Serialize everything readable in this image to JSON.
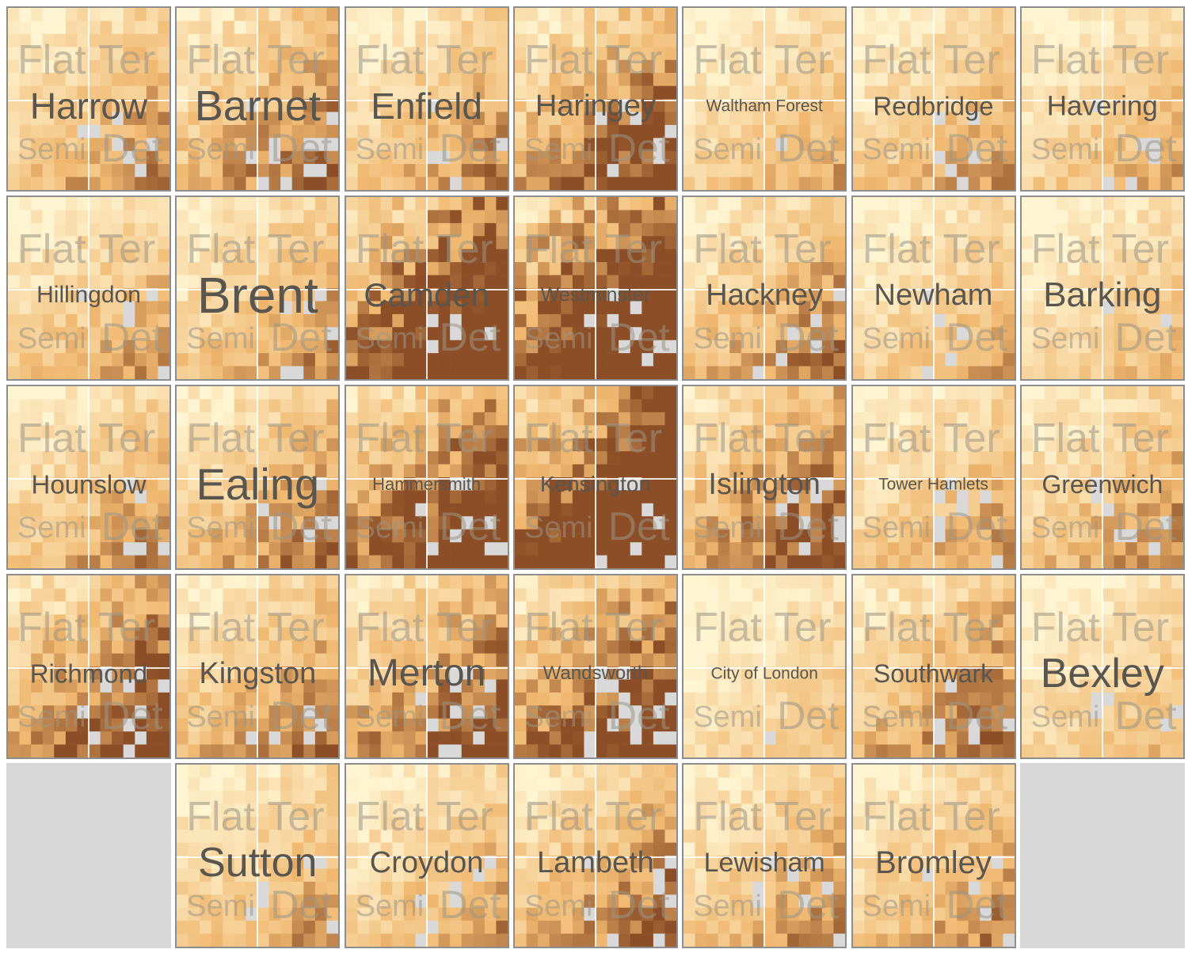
{
  "chart_data": {
    "type": "heatmap",
    "quadrant_labels": {
      "flat": "Flat",
      "terraced": "Ter",
      "semi": "Semi",
      "detached": "Det"
    },
    "boroughs": [
      {
        "name": "Harrow",
        "row": 0,
        "col": 0,
        "level": 0.35,
        "size": 46
      },
      {
        "name": "Barnet",
        "row": 0,
        "col": 1,
        "level": 0.45,
        "size": 54
      },
      {
        "name": "Enfield",
        "row": 0,
        "col": 2,
        "level": 0.35,
        "size": 46
      },
      {
        "name": "Haringey",
        "row": 0,
        "col": 3,
        "level": 0.55,
        "size": 38
      },
      {
        "name": "Waltham Forest",
        "row": 0,
        "col": 4,
        "level": 0.25,
        "size": 21
      },
      {
        "name": "Redbridge",
        "row": 0,
        "col": 5,
        "level": 0.3,
        "size": 33
      },
      {
        "name": "Havering",
        "row": 0,
        "col": 6,
        "level": 0.25,
        "size": 35
      },
      {
        "name": "Hillingdon",
        "row": 1,
        "col": 0,
        "level": 0.3,
        "size": 30
      },
      {
        "name": "Brent",
        "row": 1,
        "col": 1,
        "level": 0.35,
        "size": 64
      },
      {
        "name": "Camden",
        "row": 1,
        "col": 2,
        "level": 0.85,
        "size": 42
      },
      {
        "name": "Westminster",
        "row": 1,
        "col": 3,
        "level": 0.95,
        "size": 25
      },
      {
        "name": "Hackney",
        "row": 1,
        "col": 4,
        "level": 0.4,
        "size": 38
      },
      {
        "name": "Newham",
        "row": 1,
        "col": 5,
        "level": 0.25,
        "size": 38
      },
      {
        "name": "Barking",
        "row": 1,
        "col": 6,
        "level": 0.2,
        "size": 44
      },
      {
        "name": "Hounslow",
        "row": 2,
        "col": 0,
        "level": 0.35,
        "size": 33
      },
      {
        "name": "Ealing",
        "row": 2,
        "col": 1,
        "level": 0.4,
        "size": 56
      },
      {
        "name": "Hammersmith",
        "row": 2,
        "col": 2,
        "level": 0.7,
        "size": 22
      },
      {
        "name": "Kensington",
        "row": 2,
        "col": 3,
        "level": 0.95,
        "size": 28
      },
      {
        "name": "Islington",
        "row": 2,
        "col": 4,
        "level": 0.55,
        "size": 38
      },
      {
        "name": "Tower Hamlets",
        "row": 2,
        "col": 5,
        "level": 0.3,
        "size": 21
      },
      {
        "name": "Greenwich",
        "row": 2,
        "col": 6,
        "level": 0.35,
        "size": 32
      },
      {
        "name": "Richmond",
        "row": 3,
        "col": 0,
        "level": 0.6,
        "size": 33
      },
      {
        "name": "Kingston",
        "row": 3,
        "col": 1,
        "level": 0.4,
        "size": 38
      },
      {
        "name": "Merton",
        "row": 3,
        "col": 2,
        "level": 0.55,
        "size": 48
      },
      {
        "name": "Wandsworth",
        "row": 3,
        "col": 3,
        "level": 0.65,
        "size": 24
      },
      {
        "name": "City of London",
        "row": 3,
        "col": 4,
        "level": 0.15,
        "size": 21
      },
      {
        "name": "Southwark",
        "row": 3,
        "col": 5,
        "level": 0.45,
        "size": 32
      },
      {
        "name": "Bexley",
        "row": 3,
        "col": 6,
        "level": 0.2,
        "size": 52
      },
      {
        "name": "Sutton",
        "row": 4,
        "col": 1,
        "level": 0.3,
        "size": 52
      },
      {
        "name": "Croydon",
        "row": 4,
        "col": 2,
        "level": 0.3,
        "size": 38
      },
      {
        "name": "Lambeth",
        "row": 4,
        "col": 3,
        "level": 0.45,
        "size": 38
      },
      {
        "name": "Lewisham",
        "row": 4,
        "col": 4,
        "level": 0.35,
        "size": 34
      },
      {
        "name": "Bromley",
        "row": 4,
        "col": 5,
        "level": 0.35,
        "size": 40
      }
    ],
    "empty_cells": [
      {
        "row": 4,
        "col": 0
      },
      {
        "row": 4,
        "col": 6
      }
    ],
    "colors": {
      "low": "#fff5d2",
      "mid": "#f0b870",
      "high": "#8c4e26",
      "missing": "#d9d9d9",
      "border": "#8d8d8d"
    }
  }
}
